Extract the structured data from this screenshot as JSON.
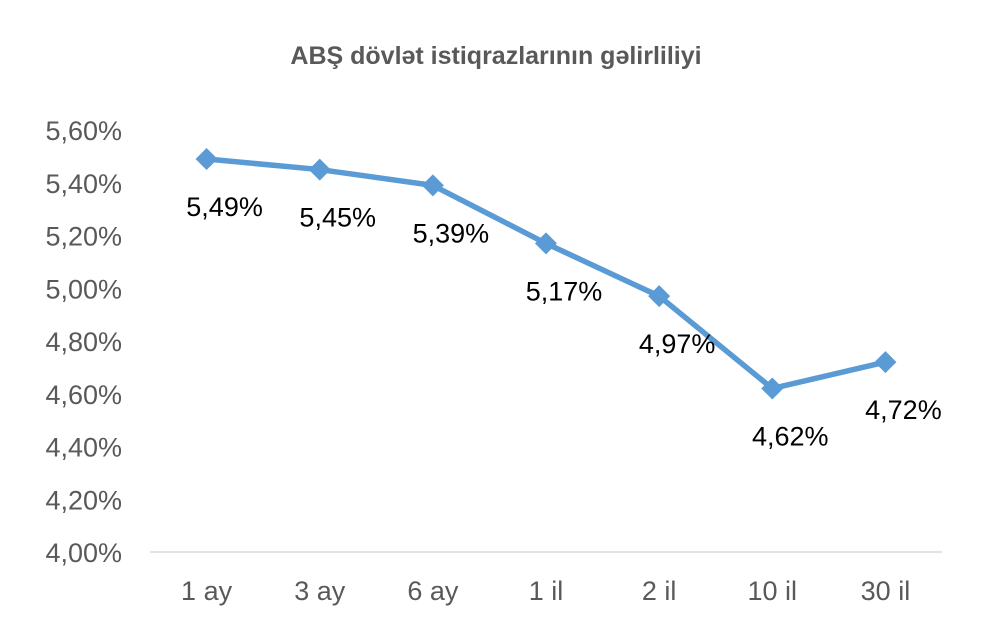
{
  "chart_data": {
    "type": "line",
    "title": "ABŞ dövlət istiqrazlarının gəlirliliyi",
    "xlabel": "",
    "ylabel": "",
    "categories": [
      "1 ay",
      "3 ay",
      "6 ay",
      "1 il",
      "2 il",
      "10 il",
      "30 il"
    ],
    "series": [
      {
        "values": [
          5.49,
          5.45,
          5.39,
          5.17,
          4.97,
          4.62,
          4.72
        ],
        "data_labels": [
          "5,49%",
          "5,45%",
          "5,39%",
          "5,17%",
          "4,97%",
          "4,62%",
          "4,72%"
        ]
      }
    ],
    "ylim": [
      4.0,
      5.6
    ],
    "yticks": [
      4.0,
      4.2,
      4.4,
      4.6,
      4.8,
      5.0,
      5.2,
      5.4,
      5.6
    ],
    "ytick_labels": [
      "4,00%",
      "4,20%",
      "4,40%",
      "4,60%",
      "4,80%",
      "5,00%",
      "5,20%",
      "5,40%",
      "5,60%"
    ],
    "grid": false,
    "legend": "none",
    "marker": "diamond",
    "line_color": "#5B9BD5",
    "axis_color": "#D9D9D9",
    "text_color": "#595959"
  }
}
